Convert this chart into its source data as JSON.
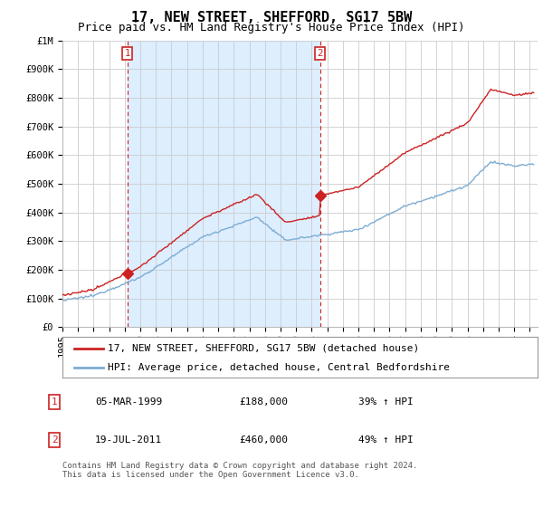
{
  "title": "17, NEW STREET, SHEFFORD, SG17 5BW",
  "subtitle": "Price paid vs. HM Land Registry's House Price Index (HPI)",
  "ylim": [
    0,
    1000000
  ],
  "yticks": [
    0,
    100000,
    200000,
    300000,
    400000,
    500000,
    600000,
    700000,
    800000,
    900000,
    1000000
  ],
  "ytick_labels": [
    "£0",
    "£100K",
    "£200K",
    "£300K",
    "£400K",
    "£500K",
    "£600K",
    "£700K",
    "£800K",
    "£900K",
    "£1M"
  ],
  "xlim_start": 1995.0,
  "xlim_end": 2025.5,
  "xtick_years": [
    1995,
    1996,
    1997,
    1998,
    1999,
    2000,
    2001,
    2002,
    2003,
    2004,
    2005,
    2006,
    2007,
    2008,
    2009,
    2010,
    2011,
    2012,
    2013,
    2014,
    2015,
    2016,
    2017,
    2018,
    2019,
    2020,
    2021,
    2022,
    2023,
    2024,
    2025
  ],
  "hpi_color": "#7dadd4",
  "price_color": "#cc2222",
  "shade_color": "#ddeeff",
  "sale1_year": 1999.17,
  "sale1_price": 188000,
  "sale2_year": 2011.54,
  "sale2_price": 460000,
  "legend_label1": "17, NEW STREET, SHEFFORD, SG17 5BW (detached house)",
  "legend_label2": "HPI: Average price, detached house, Central Bedfordshire",
  "table_rows": [
    [
      "1",
      "05-MAR-1999",
      "£188,000",
      "39% ↑ HPI"
    ],
    [
      "2",
      "19-JUL-2011",
      "£460,000",
      "49% ↑ HPI"
    ]
  ],
  "footer": "Contains HM Land Registry data © Crown copyright and database right 2024.\nThis data is licensed under the Open Government Licence v3.0.",
  "background_color": "#ffffff",
  "grid_color": "#cccccc",
  "title_fontsize": 11,
  "subtitle_fontsize": 9,
  "tick_fontsize": 7.5,
  "legend_fontsize": 8,
  "table_fontsize": 8,
  "footer_fontsize": 6.5
}
